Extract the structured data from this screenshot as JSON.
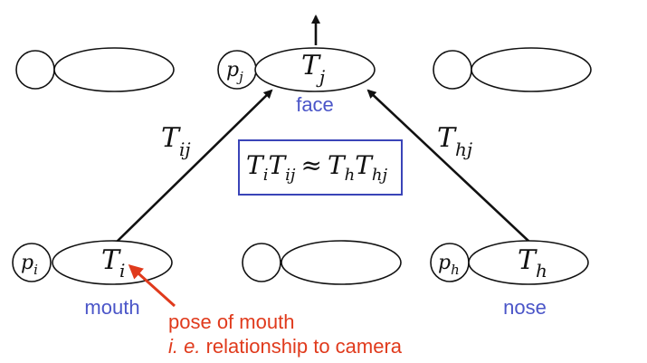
{
  "nodes": {
    "top_left": {
      "p": "",
      "T": ""
    },
    "face": {
      "p": "p",
      "p_sub": "j",
      "T": "T",
      "T_sub": "j",
      "label": "face"
    },
    "top_right": {
      "p": "",
      "T": ""
    },
    "mouth": {
      "p": "p",
      "p_sub": "i",
      "T": "T",
      "T_sub": "i",
      "label": "mouth"
    },
    "bottom_middle": {
      "p": "",
      "T": ""
    },
    "nose": {
      "p": "p",
      "p_sub": "h",
      "T": "T",
      "T_sub": "h",
      "label": "nose"
    }
  },
  "edges": {
    "mouth_to_face": {
      "T": "T",
      "sub": "ij"
    },
    "nose_to_face": {
      "T": "T",
      "sub": "hj"
    }
  },
  "equation": {
    "a": "T",
    "a_sub": "i",
    "b": "T",
    "b_sub": "ij",
    "op": "≈",
    "c": "T",
    "c_sub": "h",
    "d": "T",
    "d_sub": "hj"
  },
  "annotation": {
    "line1": "pose of mouth",
    "line2_italic": "i. e.",
    "line2_rest": " relationship to camera"
  },
  "colors": {
    "label_blue": "#4a55c8",
    "annotation_red": "#e03a1c",
    "equation_box": "#3a44b8"
  }
}
